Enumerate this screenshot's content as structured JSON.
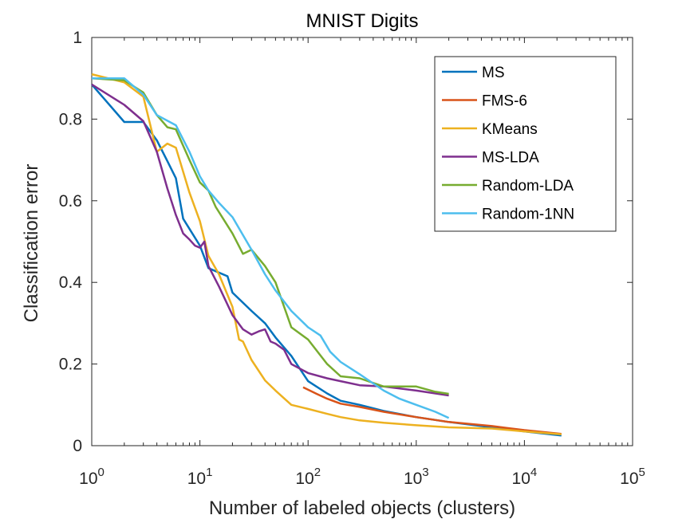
{
  "chart_data": {
    "type": "line",
    "title": "MNIST Digits",
    "xlabel": "Number of labeled objects (clusters)",
    "ylabel": "Classification error",
    "xscale": "log",
    "xlim": [
      1,
      100000
    ],
    "ylim": [
      0,
      1
    ],
    "xticks": [
      {
        "value": 1,
        "base": "10",
        "exp": "0"
      },
      {
        "value": 10,
        "base": "10",
        "exp": "1"
      },
      {
        "value": 100,
        "base": "10",
        "exp": "2"
      },
      {
        "value": 1000,
        "base": "10",
        "exp": "3"
      },
      {
        "value": 10000,
        "base": "10",
        "exp": "4"
      },
      {
        "value": 100000,
        "base": "10",
        "exp": "5"
      }
    ],
    "yticks": [
      {
        "value": 0,
        "label": "0"
      },
      {
        "value": 0.2,
        "label": "0.2"
      },
      {
        "value": 0.4,
        "label": "0.4"
      },
      {
        "value": 0.6,
        "label": "0.6"
      },
      {
        "value": 0.8,
        "label": "0.8"
      },
      {
        "value": 1,
        "label": "1"
      }
    ],
    "grid": false,
    "legend_position": "top-right",
    "series": [
      {
        "name": "MS",
        "color": "#0072BD",
        "x": [
          1,
          2,
          3,
          4,
          5,
          6,
          7,
          10,
          12,
          18,
          20,
          30,
          40,
          50,
          70,
          100,
          150,
          200,
          300,
          500,
          1000,
          2000,
          5000,
          10000,
          22000
        ],
        "y": [
          0.885,
          0.793,
          0.793,
          0.748,
          0.697,
          0.655,
          0.556,
          0.49,
          0.435,
          0.415,
          0.375,
          0.33,
          0.3,
          0.265,
          0.22,
          0.158,
          0.128,
          0.11,
          0.1,
          0.085,
          0.07,
          0.058,
          0.045,
          0.035,
          0.025
        ]
      },
      {
        "name": "FMS-6",
        "color": "#D95319",
        "x": [
          90,
          120,
          150,
          200,
          300,
          500,
          1000,
          2000,
          5000,
          10000,
          22000
        ],
        "y": [
          0.143,
          0.127,
          0.115,
          0.103,
          0.095,
          0.083,
          0.07,
          0.058,
          0.048,
          0.038,
          0.029
        ]
      },
      {
        "name": "KMeans",
        "color": "#EDB120",
        "x": [
          1,
          2,
          3,
          4,
          5,
          6,
          8,
          10,
          12,
          15,
          20,
          23,
          25,
          30,
          40,
          50,
          70,
          100,
          150,
          200,
          300,
          500,
          1000,
          2000,
          5000,
          10000,
          22000
        ],
        "y": [
          0.91,
          0.89,
          0.855,
          0.72,
          0.74,
          0.73,
          0.62,
          0.55,
          0.465,
          0.42,
          0.34,
          0.26,
          0.255,
          0.21,
          0.16,
          0.135,
          0.1,
          0.09,
          0.078,
          0.07,
          0.062,
          0.056,
          0.05,
          0.045,
          0.042,
          0.035,
          0.028
        ]
      },
      {
        "name": "MS-LDA",
        "color": "#7E2F8E",
        "x": [
          1,
          2,
          3,
          4,
          5,
          6,
          7,
          8,
          9,
          10,
          11,
          12,
          15,
          20,
          25,
          30,
          35,
          40,
          45,
          50,
          60,
          70,
          100,
          150,
          200,
          300,
          500,
          1000,
          2000
        ],
        "y": [
          0.885,
          0.835,
          0.795,
          0.72,
          0.63,
          0.565,
          0.52,
          0.505,
          0.49,
          0.485,
          0.5,
          0.44,
          0.39,
          0.32,
          0.285,
          0.272,
          0.28,
          0.285,
          0.255,
          0.25,
          0.235,
          0.2,
          0.178,
          0.165,
          0.158,
          0.148,
          0.145,
          0.135,
          0.123
        ]
      },
      {
        "name": "Random-LDA",
        "color": "#77AC30",
        "x": [
          1,
          2,
          3,
          4,
          5,
          6,
          8,
          10,
          12,
          14,
          20,
          25,
          30,
          40,
          50,
          70,
          100,
          150,
          200,
          300,
          500,
          1000,
          1500,
          2000
        ],
        "y": [
          0.9,
          0.895,
          0.865,
          0.81,
          0.78,
          0.775,
          0.7,
          0.645,
          0.625,
          0.585,
          0.52,
          0.47,
          0.48,
          0.44,
          0.4,
          0.29,
          0.26,
          0.2,
          0.17,
          0.165,
          0.145,
          0.145,
          0.132,
          0.127
        ]
      },
      {
        "name": "Random-1NN",
        "color": "#4DBEEE",
        "x": [
          1,
          2,
          3,
          4,
          6,
          8,
          10,
          12,
          15,
          20,
          30,
          40,
          50,
          70,
          100,
          130,
          160,
          200,
          300,
          500,
          700,
          1000,
          1500,
          2000
        ],
        "y": [
          0.9,
          0.9,
          0.86,
          0.81,
          0.785,
          0.72,
          0.66,
          0.625,
          0.595,
          0.56,
          0.48,
          0.42,
          0.38,
          0.33,
          0.29,
          0.27,
          0.23,
          0.205,
          0.175,
          0.135,
          0.115,
          0.1,
          0.083,
          0.068
        ]
      }
    ]
  }
}
